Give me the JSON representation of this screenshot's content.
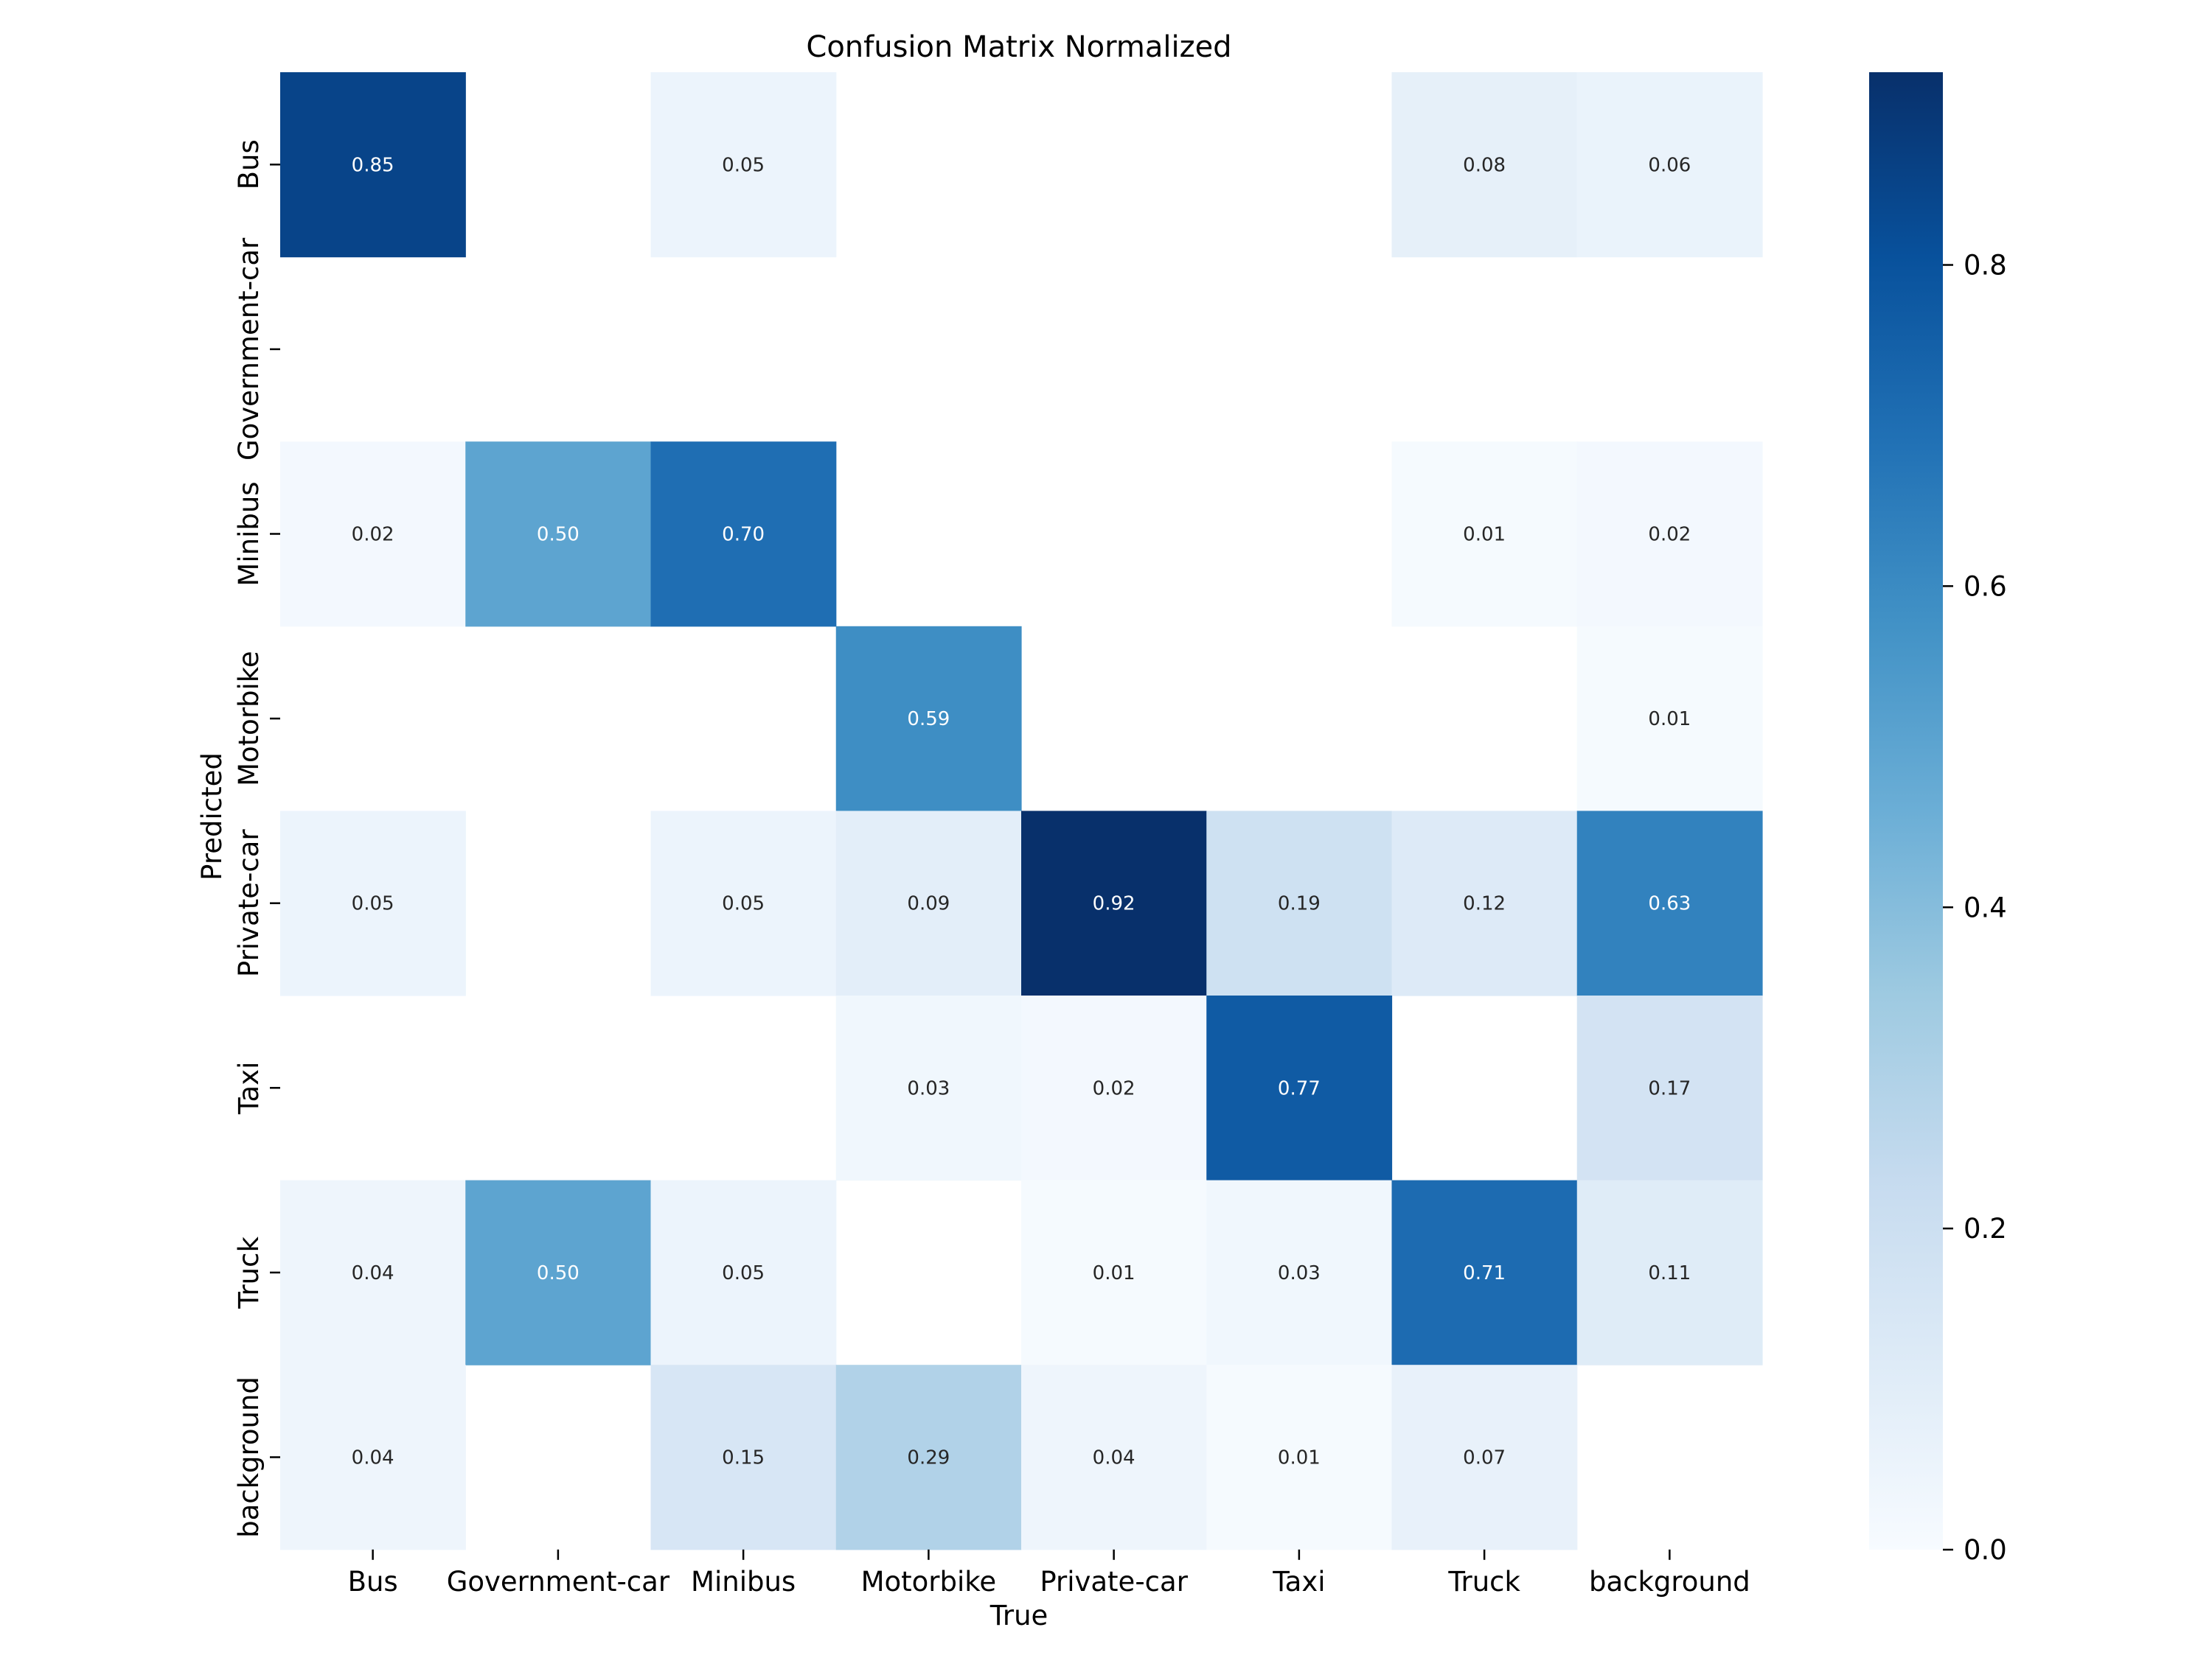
{
  "chart_data": {
    "type": "heatmap",
    "title": "Confusion Matrix Normalized",
    "xlabel": "True",
    "ylabel": "Predicted",
    "x_categories": [
      "Bus",
      "Government-car",
      "Minibus",
      "Motorbike",
      "Private-car",
      "Taxi",
      "Truck",
      "background"
    ],
    "y_categories": [
      "Bus",
      "Government-car",
      "Minibus",
      "Motorbike",
      "Private-car",
      "Taxi",
      "Truck",
      "background"
    ],
    "values": [
      [
        0.85,
        null,
        0.05,
        null,
        null,
        null,
        0.08,
        0.06
      ],
      [
        null,
        null,
        null,
        null,
        null,
        null,
        null,
        null
      ],
      [
        0.02,
        0.5,
        0.7,
        null,
        null,
        null,
        0.01,
        0.02
      ],
      [
        null,
        null,
        null,
        0.59,
        null,
        null,
        null,
        0.01
      ],
      [
        0.05,
        null,
        0.05,
        0.09,
        0.92,
        0.19,
        0.12,
        0.63
      ],
      [
        null,
        null,
        null,
        0.03,
        0.02,
        0.77,
        null,
        0.17
      ],
      [
        0.04,
        0.5,
        0.05,
        null,
        0.01,
        0.03,
        0.71,
        0.11
      ],
      [
        0.04,
        null,
        0.15,
        0.29,
        0.04,
        0.01,
        0.07,
        null
      ]
    ],
    "colormap": "Blues",
    "colorbar": {
      "range": [
        0,
        0.92
      ],
      "ticks": [
        0.0,
        0.2,
        0.4,
        0.6,
        0.8
      ],
      "tick_labels": [
        "0.0",
        "0.2",
        "0.4",
        "0.6",
        "0.8"
      ]
    }
  }
}
